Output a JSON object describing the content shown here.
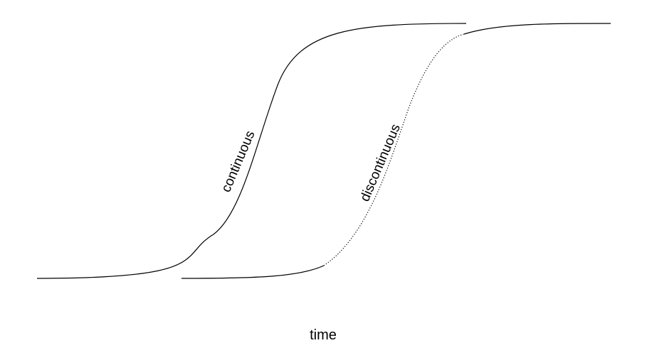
{
  "labels": {
    "continuous": "continuous",
    "discontinuous": "discontinuous",
    "x_axis": "time"
  },
  "colors": {
    "stroke": "#000000",
    "background": "#ffffff"
  }
}
